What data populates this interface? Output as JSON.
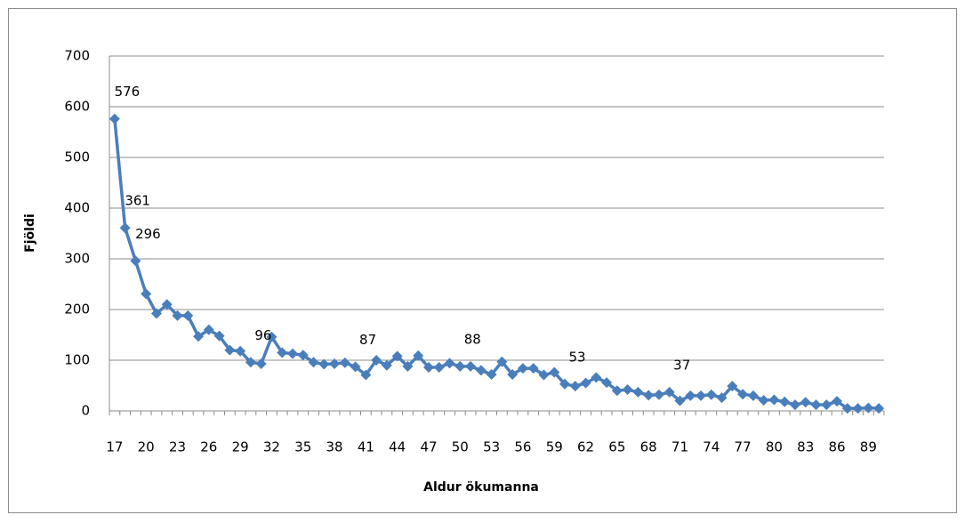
{
  "chart_data": {
    "type": "line",
    "x_label": "Aldur ökumanna",
    "y_label": "Fjöldi",
    "categories": [
      17,
      null,
      null,
      20,
      null,
      null,
      23,
      null,
      null,
      26,
      null,
      null,
      29,
      null,
      null,
      32,
      null,
      null,
      35,
      null,
      null,
      38,
      null,
      null,
      41,
      null,
      null,
      44,
      null,
      null,
      47,
      null,
      null,
      50,
      null,
      null,
      53,
      null,
      null,
      56,
      null,
      null,
      59,
      null,
      null,
      62,
      null,
      null,
      65,
      null,
      null,
      68,
      null,
      null,
      71,
      null,
      null,
      74,
      null,
      null,
      77,
      null,
      null,
      80,
      null,
      null,
      83,
      null,
      null,
      86,
      null,
      null,
      89,
      null
    ],
    "series": [
      {
        "color": "#4a7ebb",
        "values": [
          576,
          361,
          296,
          231,
          192,
          210,
          188,
          188,
          147,
          160,
          148,
          120,
          118,
          96,
          93,
          146,
          115,
          113,
          110,
          96,
          92,
          93,
          95,
          87,
          71,
          100,
          90,
          108,
          88,
          109,
          86,
          86,
          94,
          88,
          88,
          80,
          72,
          97,
          72,
          84,
          84,
          71,
          76,
          53,
          49,
          55,
          66,
          56,
          40,
          42,
          37,
          31,
          32,
          37,
          20,
          30,
          30,
          32,
          26,
          49,
          33,
          30,
          21,
          22,
          18,
          12,
          17,
          12,
          12,
          19,
          5,
          5,
          6,
          5
        ]
      }
    ],
    "labeled_points": [
      0,
      1,
      2,
      13,
      23,
      33,
      43,
      53
    ],
    "ylim": [
      0,
      700
    ],
    "yticks": [
      0,
      100,
      200,
      300,
      400,
      500,
      600,
      700
    ],
    "grid": true
  }
}
